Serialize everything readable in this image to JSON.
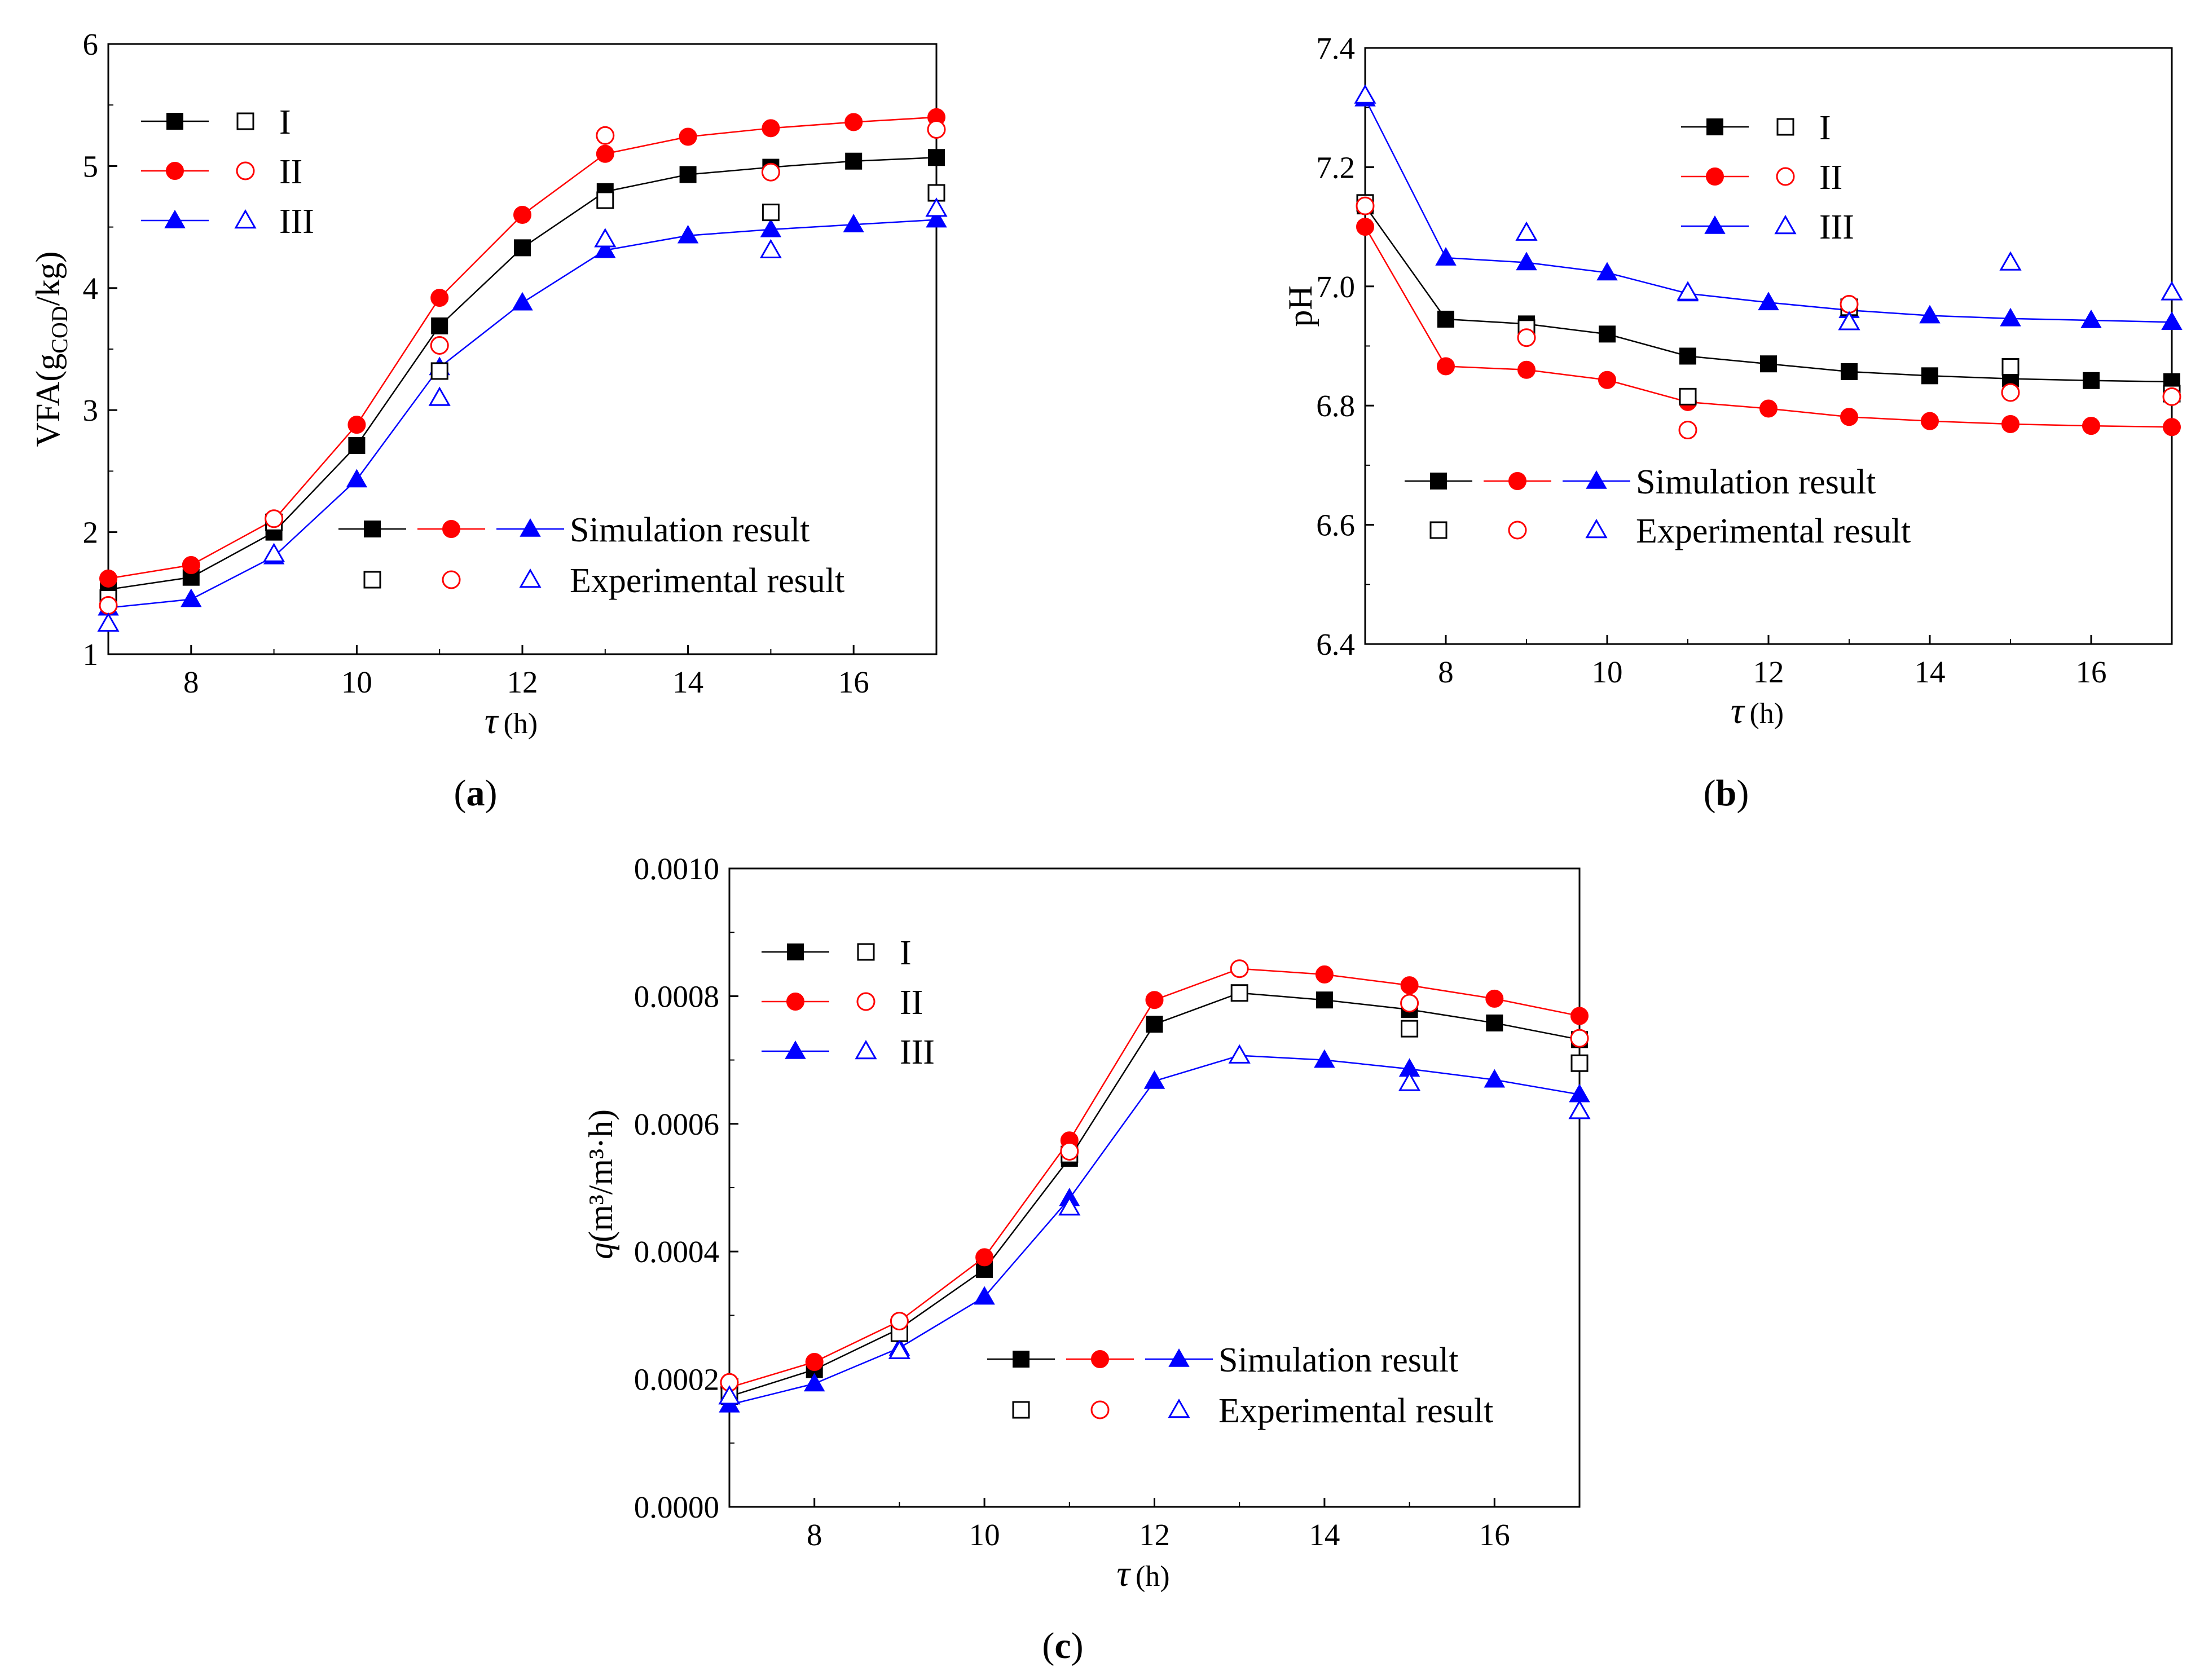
{
  "chart_data": [
    {
      "type": "line",
      "panel_label": "a",
      "title": "",
      "xlabel": "τ",
      "xlabel_unit": "(h)",
      "ylabel": "VFA(g",
      "ylabel_sub": "COD",
      "ylabel_tail": "/kg)",
      "xlim": [
        7,
        17
      ],
      "ylim": [
        1,
        6
      ],
      "xticks": [
        8,
        10,
        12,
        14,
        16
      ],
      "yticks": [
        1,
        2,
        3,
        4,
        5,
        6
      ],
      "ytick_labels": [
        "1",
        "2",
        "3",
        "4",
        "5",
        "6"
      ],
      "x": [
        7,
        8,
        9,
        10,
        11,
        12,
        13,
        14,
        15,
        16,
        17
      ],
      "series": [
        {
          "name": "I",
          "kind": "simulation",
          "color": "#000000",
          "marker": "square",
          "values": [
            1.53,
            1.63,
            2.0,
            2.71,
            3.69,
            4.33,
            4.79,
            4.93,
            4.99,
            5.04,
            5.07
          ]
        },
        {
          "name": "II",
          "kind": "simulation",
          "color": "#ff0000",
          "marker": "circle",
          "values": [
            1.62,
            1.73,
            2.1,
            2.88,
            3.92,
            4.6,
            5.1,
            5.24,
            5.31,
            5.36,
            5.4
          ]
        },
        {
          "name": "III",
          "kind": "simulation",
          "color": "#0000ff",
          "marker": "triangle",
          "values": [
            1.38,
            1.45,
            1.8,
            2.43,
            3.35,
            3.88,
            4.31,
            4.43,
            4.48,
            4.52,
            4.56
          ]
        },
        {
          "name": "I",
          "kind": "experiment",
          "color": "#000000",
          "marker": "square-open",
          "x": [
            7,
            9,
            11,
            13,
            15,
            17
          ],
          "values": [
            1.46,
            2.08,
            3.32,
            4.72,
            4.62,
            4.78
          ]
        },
        {
          "name": "II",
          "kind": "experiment",
          "color": "#ff0000",
          "marker": "circle-open",
          "x": [
            7,
            9,
            11,
            13,
            15,
            17
          ],
          "values": [
            1.4,
            2.11,
            3.53,
            5.25,
            4.95,
            5.3
          ]
        },
        {
          "name": "III",
          "kind": "experiment",
          "color": "#0000ff",
          "marker": "triangle-open",
          "x": [
            7,
            9,
            11,
            13,
            15,
            17
          ],
          "values": [
            1.25,
            1.82,
            3.1,
            4.4,
            4.31,
            4.65
          ]
        }
      ],
      "legend_series": [
        "I",
        "II",
        "III"
      ],
      "legend_sim": "Simulation result",
      "legend_exp": "Experimental result"
    },
    {
      "type": "line",
      "panel_label": "b",
      "title": "",
      "xlabel": "τ",
      "xlabel_unit": "(h)",
      "ylabel": "pH",
      "xlim": [
        7,
        17
      ],
      "ylim": [
        6.4,
        7.4
      ],
      "xticks": [
        8,
        10,
        12,
        14,
        16
      ],
      "yticks": [
        6.4,
        6.6,
        6.8,
        7.0,
        7.2,
        7.4
      ],
      "ytick_labels": [
        "6.4",
        "6.6",
        "6.8",
        "7.0",
        "7.2",
        "7.4"
      ],
      "x": [
        7,
        8,
        9,
        10,
        11,
        12,
        13,
        14,
        15,
        16,
        17
      ],
      "series": [
        {
          "name": "I",
          "kind": "simulation",
          "color": "#000000",
          "marker": "square",
          "values": [
            7.135,
            6.945,
            6.937,
            6.92,
            6.883,
            6.87,
            6.857,
            6.85,
            6.845,
            6.842,
            6.84
          ]
        },
        {
          "name": "II",
          "kind": "simulation",
          "color": "#ff0000",
          "marker": "circle",
          "values": [
            7.1,
            6.866,
            6.86,
            6.843,
            6.806,
            6.795,
            6.781,
            6.774,
            6.769,
            6.766,
            6.764
          ]
        },
        {
          "name": "III",
          "kind": "simulation",
          "color": "#0000ff",
          "marker": "triangle",
          "values": [
            7.315,
            7.048,
            7.04,
            7.023,
            6.988,
            6.973,
            6.96,
            6.951,
            6.946,
            6.943,
            6.94
          ]
        },
        {
          "name": "I",
          "kind": "experiment",
          "color": "#000000",
          "marker": "square-open",
          "x": [
            7,
            9,
            11,
            13,
            15,
            17
          ],
          "values": [
            7.14,
            6.93,
            6.815,
            6.965,
            6.865,
            6.82
          ]
        },
        {
          "name": "II",
          "kind": "experiment",
          "color": "#ff0000",
          "marker": "circle-open",
          "x": [
            7,
            9,
            11,
            13,
            15,
            17
          ],
          "values": [
            7.135,
            6.914,
            6.759,
            6.97,
            6.822,
            6.815
          ]
        },
        {
          "name": "III",
          "kind": "experiment",
          "color": "#0000ff",
          "marker": "triangle-open",
          "x": [
            7,
            9,
            11,
            13,
            15,
            17
          ],
          "values": [
            7.32,
            7.09,
            6.99,
            6.94,
            7.04,
            6.99
          ]
        }
      ],
      "legend_series": [
        "I",
        "II",
        "III"
      ],
      "legend_sim": "Simulation result",
      "legend_exp": "Experimental result"
    },
    {
      "type": "line",
      "panel_label": "c",
      "title": "",
      "xlabel": "τ",
      "xlabel_unit": "(h)",
      "ylabel": "q",
      "ylabel_tail": "(m³/m³·h)",
      "xlim": [
        7,
        17
      ],
      "ylim": [
        0,
        0.001
      ],
      "xticks": [
        8,
        10,
        12,
        14,
        16
      ],
      "yticks": [
        0,
        0.0002,
        0.0004,
        0.0006,
        0.0008,
        0.001
      ],
      "ytick_labels": [
        "0.0000",
        "0.0002",
        "0.0004",
        "0.0006",
        "0.0008",
        "0.0010"
      ],
      "x": [
        7,
        8,
        9,
        10,
        11,
        12,
        13,
        14,
        15,
        16,
        17
      ],
      "series": [
        {
          "name": "I",
          "kind": "simulation",
          "color": "#000000",
          "marker": "square",
          "values": [
            0.000173,
            0.000215,
            0.000279,
            0.000372,
            0.000546,
            0.000756,
            0.000805,
            0.000794,
            0.000779,
            0.000758,
            0.000732
          ]
        },
        {
          "name": "II",
          "kind": "simulation",
          "color": "#ff0000",
          "marker": "circle",
          "values": [
            0.000187,
            0.000227,
            0.000291,
            0.000391,
            0.000574,
            0.000794,
            0.000843,
            0.000834,
            0.000817,
            0.000796,
            0.000769
          ]
        },
        {
          "name": "III",
          "kind": "simulation",
          "color": "#0000ff",
          "marker": "triangle",
          "values": [
            0.00016,
            0.000193,
            0.000249,
            0.000329,
            0.000483,
            0.000667,
            0.000707,
            0.0007,
            0.000686,
            0.000669,
            0.000646
          ]
        },
        {
          "name": "I",
          "kind": "experiment",
          "color": "#000000",
          "marker": "square-open",
          "x": [
            7,
            9,
            11,
            13,
            15,
            17
          ],
          "values": [
            0.000178,
            0.000272,
            0.000552,
            0.000805,
            0.000749,
            0.000695
          ]
        },
        {
          "name": "II",
          "kind": "experiment",
          "color": "#ff0000",
          "marker": "circle-open",
          "x": [
            7,
            9,
            11,
            13,
            15,
            17
          ],
          "values": [
            0.000195,
            0.000291,
            0.000557,
            0.000843,
            0.000789,
            0.000734
          ]
        },
        {
          "name": "III",
          "kind": "experiment",
          "color": "#0000ff",
          "marker": "triangle-open",
          "x": [
            7,
            9,
            11,
            13,
            15,
            17
          ],
          "values": [
            0.000173,
            0.000244,
            0.000469,
            0.000707,
            0.000664,
            0.00062
          ]
        }
      ],
      "legend_series": [
        "I",
        "II",
        "III"
      ],
      "legend_sim": "Simulation result",
      "legend_exp": "Experimental result"
    }
  ]
}
